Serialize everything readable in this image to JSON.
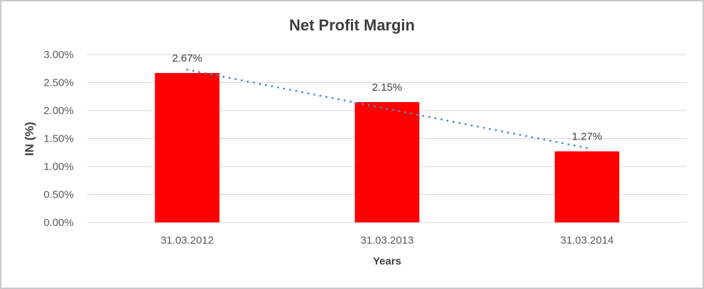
{
  "chart_data": {
    "type": "bar",
    "title": "Net Profit Margin",
    "xlabel": "Years",
    "ylabel": "IN (%)",
    "categories": [
      "31.03.2012",
      "31.03.2013",
      "31.03.2014"
    ],
    "values": [
      2.67,
      2.15,
      1.27
    ],
    "data_labels": [
      "2.67%",
      "2.15%",
      "1.27%"
    ],
    "y_ticks": [
      "3.00%",
      "2.50%",
      "2.00%",
      "1.50%",
      "1.00%",
      "0.50%",
      "0.00%"
    ],
    "ylim": [
      0,
      3.0
    ],
    "grid": true,
    "legend": "none",
    "colors": {
      "bar": "#FF0000",
      "trendline": "#4A89C8",
      "gridline": "#D9D9D9",
      "title_text": "#3F3F3F",
      "tick_text": "#595959",
      "data_label_text": "#404040"
    },
    "trendline": {
      "type": "linear",
      "style": "dotted",
      "start_value": 2.73,
      "end_value": 1.33
    }
  }
}
